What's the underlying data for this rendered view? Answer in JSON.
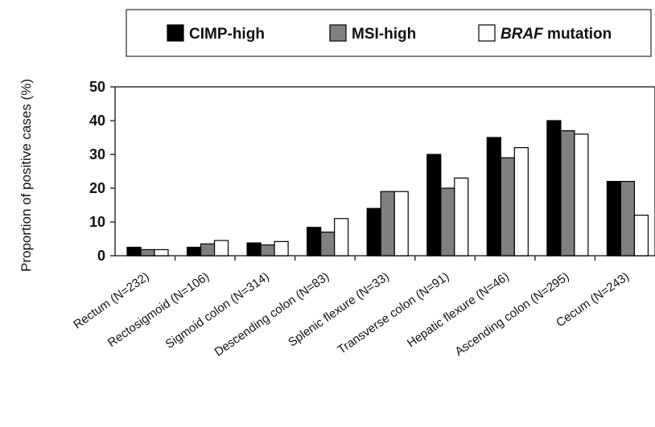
{
  "chart_data": {
    "type": "bar",
    "title": "",
    "xlabel": "",
    "ylabel": "Proportion of positive cases (%)",
    "ylim": [
      0,
      50
    ],
    "yticks": [
      0,
      10,
      20,
      30,
      40,
      50
    ],
    "grid": false,
    "legend_position": "top",
    "categories": [
      "Rectum (N=232)",
      "Rectosigmoid (N=106)",
      "Sigmoid colon (N=314)",
      "Descending colon (N=83)",
      "Splenic flexure (N=33)",
      "Transverse colon (N=91)",
      "Hepatic flexure (N=46)",
      "Ascending colon (N=295)",
      "Cecum (N=243)"
    ],
    "series": [
      {
        "name": "CIMP-high",
        "color": "#000000",
        "values": [
          2.5,
          2.5,
          3.8,
          8.4,
          14,
          30,
          35,
          40,
          22
        ]
      },
      {
        "name": "MSI-high",
        "color": "#808080",
        "values": [
          1.8,
          3.5,
          3.2,
          7,
          19,
          20,
          29,
          37,
          22
        ]
      },
      {
        "name": "BRAF mutation",
        "name_italic": "BRAF",
        "name_rest": " mutation",
        "color": "#ffffff",
        "values": [
          1.8,
          4.5,
          4.2,
          11,
          19,
          23,
          32,
          36,
          12
        ]
      }
    ]
  }
}
